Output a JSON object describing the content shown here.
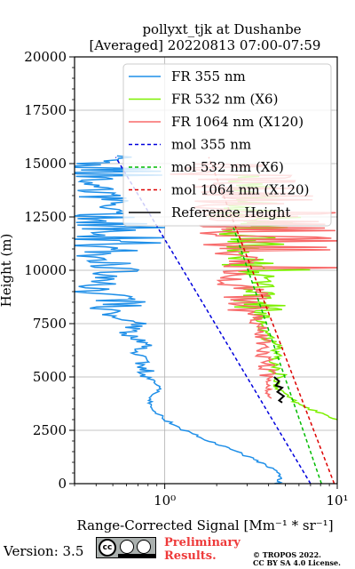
{
  "chart_data": {
    "type": "line",
    "title_line1": "pollyxt_tjk at Dushanbe",
    "title_line2": "[Averaged] 20220813 07:00-07:59",
    "xlabel": "Range-Corrected Signal [Mm⁻¹ * sr⁻¹]",
    "ylabel": "Height (m)",
    "xscale": "log",
    "xlim": [
      0.3,
      10
    ],
    "ylim": [
      0,
      20000
    ],
    "yticks": [
      0,
      2500,
      5000,
      7500,
      10000,
      12500,
      15000,
      17500,
      20000
    ],
    "ytick_labels": [
      "0",
      "2500",
      "5000",
      "7500",
      "10000",
      "12500",
      "15000",
      "17500",
      "20000"
    ],
    "xtick_labels": [
      "10⁰",
      "10¹"
    ],
    "grid": true,
    "legend_position": "top-right",
    "series": [
      {
        "name": "FR 355 nm",
        "color": "#1f8fe8",
        "style": "solid",
        "x": [
          4.5,
          4.7,
          4.4,
          3.6,
          2.6,
          1.8,
          1.3,
          1.0,
          0.85,
          0.8,
          0.95,
          0.8,
          0.75,
          0.7,
          0.8,
          0.6,
          0.7,
          0.45,
          0.6,
          0.35,
          0.5,
          0.4,
          0.4,
          0.45,
          0.4,
          0.4,
          0.5
        ],
        "y": [
          0,
          300,
          600,
          1000,
          1500,
          2000,
          2500,
          3000,
          3500,
          4000,
          4500,
          5000,
          5500,
          6000,
          6500,
          7000,
          7500,
          8000,
          8500,
          9000,
          10000,
          11000,
          12000,
          13000,
          14000,
          15000,
          15400
        ]
      },
      {
        "name": "FR 532 nm (X6)",
        "color": "#7df000",
        "style": "solid",
        "x": [
          10,
          6.0,
          4.4,
          4.6,
          4.2,
          3.8,
          3.5,
          3.2,
          3.0,
          2.9,
          2.6,
          2.6,
          3.0,
          2.4,
          2.0,
          2.8,
          3.5,
          2.5
        ],
        "y": [
          3000,
          3700,
          4500,
          5500,
          6500,
          7500,
          8500,
          9500,
          10000,
          10500,
          11000,
          11500,
          12000,
          12500,
          13000,
          13500,
          14000,
          14500
        ]
      },
      {
        "name": "FR 1064 nm (X120)",
        "color": "#f86a6a",
        "style": "solid",
        "x": [
          4.0,
          4.0,
          3.8,
          3.6,
          3.3,
          3.0,
          2.6,
          2.4,
          2.2,
          2.0,
          1.8,
          1.6,
          1.5,
          1.4
        ],
        "y": [
          4000,
          5000,
          6000,
          7000,
          8000,
          9000,
          10000,
          11000,
          12000,
          13000,
          13500,
          14000,
          14500,
          15000
        ]
      },
      {
        "name": "mol 355 nm",
        "color": "#0000dd",
        "style": "dashed",
        "x": [
          7.0,
          0.52
        ],
        "y": [
          0,
          15300
        ]
      },
      {
        "name": "mol 532 nm (X6)",
        "color": "#00bb00",
        "style": "dashed",
        "x": [
          8.1,
          2.5
        ],
        "y": [
          0,
          12000
        ]
      },
      {
        "name": "mol 1064 nm (X120)",
        "color": "#dd0000",
        "style": "dashed",
        "x": [
          9.6,
          1.8
        ],
        "y": [
          0,
          15300
        ]
      },
      {
        "name": "Reference Height",
        "color": "#000000",
        "style": "solid",
        "x": [
          4.3,
          4.6,
          4.4,
          4.8,
          4.5,
          4.9,
          4.6,
          4.8
        ],
        "y": [
          5000,
          4800,
          4600,
          4500,
          4300,
          4100,
          3900,
          3800
        ]
      }
    ]
  },
  "footer": {
    "version": "Version: 3.5",
    "license_badge": [
      "BY",
      "SA"
    ],
    "preliminary_line1": "Preliminary",
    "preliminary_line2": "Results.",
    "copyright_line1": "© TROPOS 2022.",
    "copyright_line2": "CC BY SA 4.0 License."
  }
}
